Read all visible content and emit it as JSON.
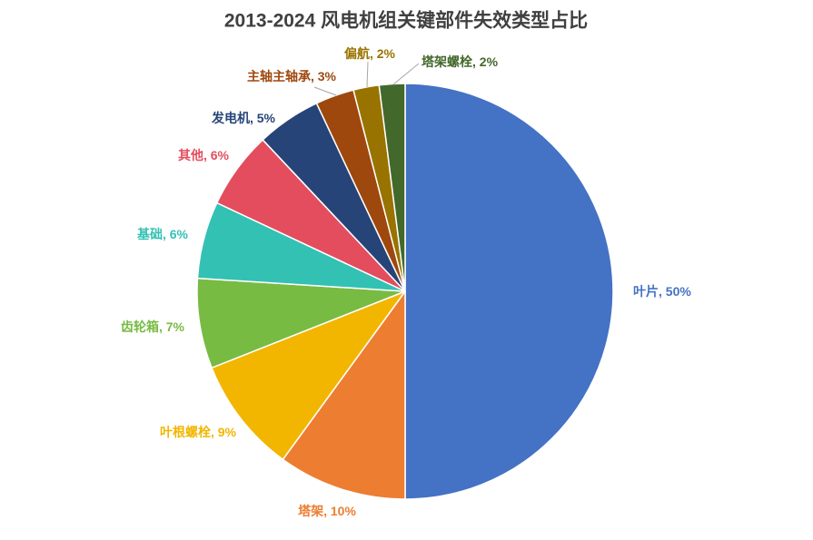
{
  "chart_data": {
    "type": "pie",
    "title": "2013-2024 风电机组关键部件失效类型占比",
    "categories": [
      "叶片",
      "塔架",
      "叶根螺栓",
      "齿轮箱",
      "基础",
      "其他",
      "发电机",
      "主轴主轴承",
      "偏航",
      "塔架螺栓"
    ],
    "values": [
      50,
      10,
      9,
      7,
      6,
      6,
      5,
      3,
      2,
      2
    ],
    "unit": "%",
    "colors": [
      "#4472C4",
      "#ED7D31",
      "#F2B600",
      "#78BB43",
      "#33C1B4",
      "#E34D5E",
      "#264478",
      "#9E480E",
      "#997300",
      "#43682B"
    ],
    "legend": "none"
  }
}
